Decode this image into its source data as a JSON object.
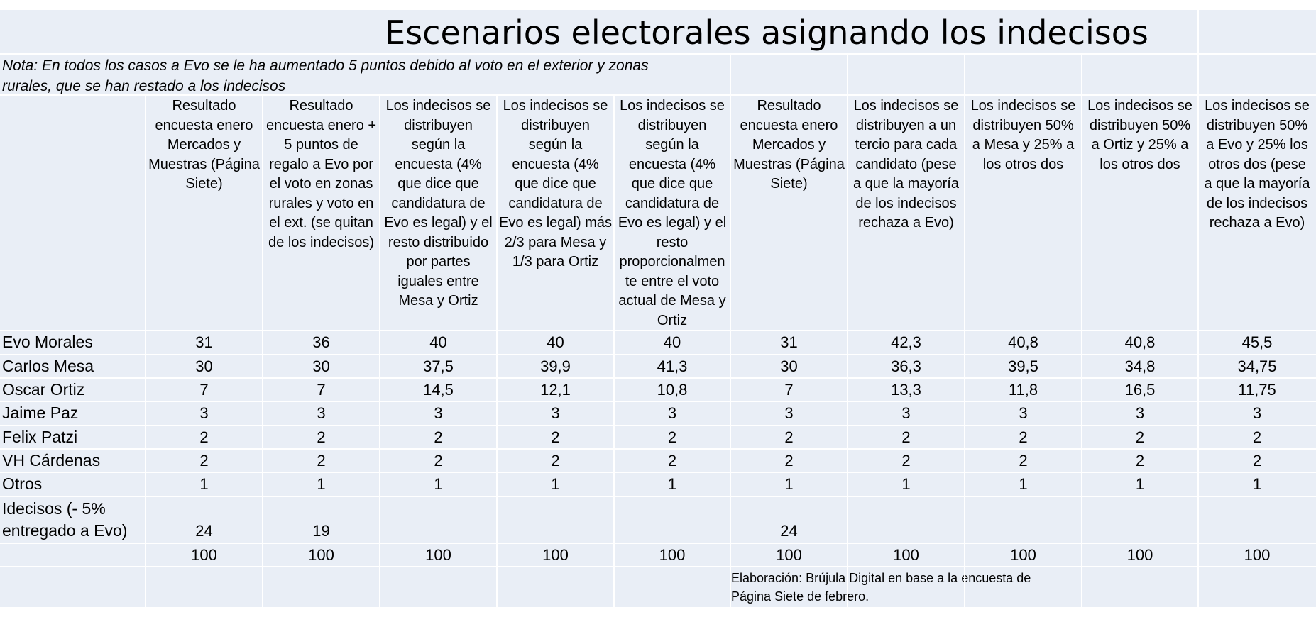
{
  "title": "Escenarios electorales asignando los indecisos",
  "note": "Nota: En todos los casos a Evo se le ha aumentado 5 puntos debido al voto en el exterior y zonas\nrurales, que se han restado a los indecisos",
  "column_headers": [
    "Resultado\nencuesta enero\nMercados y\nMuestras (Página\nSiete)",
    "Resultado\nencuesta enero +\n5 puntos de\nregalo a Evo por\nel voto en zonas\nrurales y voto en\nel ext. (se quitan\nde los indecisos)",
    "Los indecisos se\ndistribuyen\nsegún la\nencuesta (4%\nque dice que\ncandidatura de\nEvo es legal) y el\nresto distribuido\npor partes\niguales entre\nMesa y Ortiz",
    "Los indecisos se\ndistribuyen\nsegún la\nencuesta (4%\nque dice que\ncandidatura de\nEvo es legal) más\n2/3 para Mesa y\n1/3 para Ortiz",
    "Los indecisos se\ndistribuyen\nsegún la\nencuesta (4%\nque dice que\ncandidatura de\nEvo es legal) y el\nresto\nproporcionalmen\nte entre el voto\nactual de Mesa y\nOrtiz",
    "Resultado\nencuesta enero\nMercados y\nMuestras (Página\nSiete)",
    "Los indecisos se\ndistribuyen a un\ntercio para cada\ncandidato (pese\na que la mayoría\nde los indecisos\nrechaza a Evo)",
    "Los indecisos se\ndistribuyen 50%\na Mesa y 25% a\nlos otros dos",
    "Los indecisos se\ndistribuyen 50%\na Ortiz y 25% a\nlos otros dos",
    "Los indecisos se\ndistribuyen 50%\na Evo y 25% los\notros dos   (pese\na que la mayoría\nde los indecisos\nrechaza a Evo)"
  ],
  "rows": [
    {
      "label": "Evo Morales",
      "values": [
        "31",
        "36",
        "40",
        "40",
        "40",
        "31",
        "42,3",
        "40,8",
        "40,8",
        "45,5"
      ]
    },
    {
      "label": "Carlos Mesa",
      "values": [
        "30",
        "30",
        "37,5",
        "39,9",
        "41,3",
        "30",
        "36,3",
        "39,5",
        "34,8",
        "34,75"
      ]
    },
    {
      "label": "Oscar Ortiz",
      "values": [
        "7",
        "7",
        "14,5",
        "12,1",
        "10,8",
        "7",
        "13,3",
        "11,8",
        "16,5",
        "11,75"
      ]
    },
    {
      "label": "Jaime Paz",
      "values": [
        "3",
        "3",
        "3",
        "3",
        "3",
        "3",
        "3",
        "3",
        "3",
        "3"
      ]
    },
    {
      "label": "Felix  Patzi",
      "values": [
        "2",
        "2",
        "2",
        "2",
        "2",
        "2",
        "2",
        "2",
        "2",
        "2"
      ]
    },
    {
      "label": "VH Cárdenas",
      "values": [
        "2",
        "2",
        "2",
        "2",
        "2",
        "2",
        "2",
        "2",
        "2",
        "2"
      ]
    },
    {
      "label": "Otros",
      "values": [
        "1",
        "1",
        "1",
        "1",
        "1",
        "1",
        "1",
        "1",
        "1",
        "1"
      ]
    },
    {
      "label": "Idecisos (- 5%\nentregado a Evo)",
      "values": [
        "24",
        "19",
        "",
        "",
        "",
        "24",
        "",
        "",
        "",
        ""
      ]
    },
    {
      "label": "",
      "values": [
        "100",
        "100",
        "100",
        "100",
        "100",
        "100",
        "100",
        "100",
        "100",
        "100"
      ]
    }
  ],
  "credit": "Elaboración: Brújula Digital en base a la encuesta de\nPágina Siete de febrero.",
  "colors": {
    "cell_bg": "#e9eef6",
    "grid": "#ffffff"
  }
}
